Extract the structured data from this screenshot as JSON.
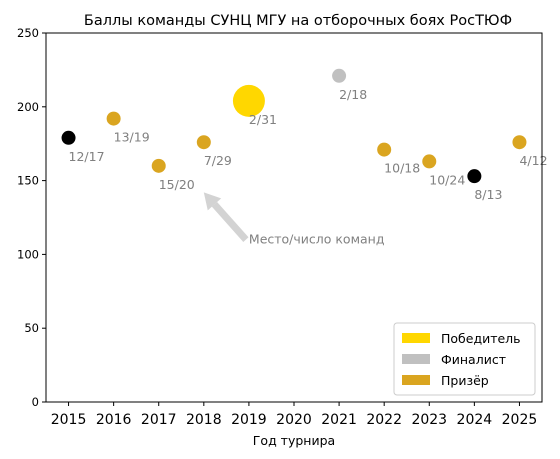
{
  "chart_data": {
    "type": "scatter",
    "title": "Баллы команды СУНЦ МГУ на отборочных боях РосТЮФ",
    "xlabel": "Год турнира",
    "ylabel": "",
    "xlim": [
      2014.5,
      2025.5
    ],
    "ylim": [
      0,
      250
    ],
    "x_ticks": [
      "2015",
      "2016",
      "2017",
      "2018",
      "2019",
      "2020",
      "2021",
      "2022",
      "2023",
      "2024",
      "2025"
    ],
    "y_ticks": [
      "0",
      "50",
      "100",
      "150",
      "200",
      "250"
    ],
    "grid": false,
    "legend_position": "lower-right",
    "legend": [
      {
        "label": "Победитель",
        "color": "#FFD700"
      },
      {
        "label": "Финалист",
        "color": "#C0C0C0"
      },
      {
        "label": "Призёр",
        "color": "#DAA520"
      }
    ],
    "points": [
      {
        "x": 2015,
        "y": 179,
        "label": "12/17",
        "color": "#000000",
        "size": "small"
      },
      {
        "x": 2016,
        "y": 192,
        "label": "13/19",
        "color": "#DAA520",
        "size": "small"
      },
      {
        "x": 2017,
        "y": 160,
        "label": "15/20",
        "color": "#DAA520",
        "size": "small"
      },
      {
        "x": 2018,
        "y": 176,
        "label": "7/29",
        "color": "#DAA520",
        "size": "small"
      },
      {
        "x": 2019,
        "y": 204,
        "label": "2/31",
        "color": "#FFD700",
        "size": "large"
      },
      {
        "x": 2021,
        "y": 221,
        "label": "2/18",
        "color": "#C0C0C0",
        "size": "small"
      },
      {
        "x": 2022,
        "y": 171,
        "label": "10/18",
        "color": "#DAA520",
        "size": "small"
      },
      {
        "x": 2023,
        "y": 163,
        "label": "10/24",
        "color": "#DAA520",
        "size": "small"
      },
      {
        "x": 2024,
        "y": 153,
        "label": "8/13",
        "color": "#000000",
        "size": "small"
      },
      {
        "x": 2025,
        "y": 176,
        "label": "4/12",
        "color": "#DAA520",
        "size": "small"
      }
    ],
    "annotation": {
      "text": "Место/число команд",
      "arrow_from": [
        2019,
        110
      ],
      "arrow_to": [
        2018,
        142
      ]
    }
  }
}
